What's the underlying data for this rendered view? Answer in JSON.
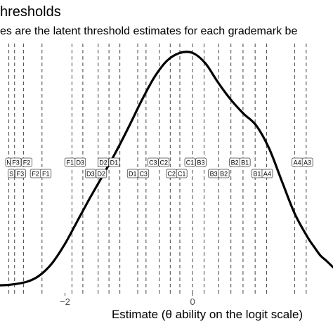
{
  "chart_data": {
    "type": "line",
    "title": "hresholds",
    "subtitle": "es are the latent threshold estimates for each grademark be",
    "xlabel": "Estimate (θ ability on the logit scale)",
    "ylabel": "",
    "xlim": [
      -3.15,
      2.2
    ],
    "ylim": [
      0,
      0.47
    ],
    "x_ticks": [
      -2,
      0
    ],
    "x_tick_labels": [
      "−2",
      "0"
    ],
    "grid": false,
    "density": {
      "x": [
        -3.2,
        -2.9,
        -2.6,
        -2.4,
        -2.2,
        -2.0,
        -1.8,
        -1.6,
        -1.4,
        -1.2,
        -1.0,
        -0.8,
        -0.6,
        -0.4,
        -0.2,
        0.0,
        0.2,
        0.4,
        0.6,
        0.8,
        1.0,
        1.2,
        1.4,
        1.6,
        1.8,
        1.9,
        2.0,
        2.1,
        2.2
      ],
      "y": [
        0.005,
        0.006,
        0.012,
        0.024,
        0.048,
        0.085,
        0.13,
        0.175,
        0.218,
        0.262,
        0.31,
        0.36,
        0.405,
        0.437,
        0.452,
        0.452,
        0.432,
        0.395,
        0.362,
        0.335,
        0.312,
        0.268,
        0.205,
        0.143,
        0.098,
        0.08,
        0.063,
        0.052,
        0.04
      ]
    },
    "thresholds": [
      {
        "x": -2.88,
        "label": "N"
      },
      {
        "x": -2.79,
        "label": "F3"
      },
      {
        "x": -2.65,
        "label": "F2"
      },
      {
        "x": -2.36,
        "label": "F1"
      },
      {
        "x": -1.89,
        "label": "F1"
      },
      {
        "x": -1.72,
        "label": "D3"
      },
      {
        "x": -1.48,
        "label": "D3"
      },
      {
        "x": -1.31,
        "label": "D2"
      },
      {
        "x": -1.14,
        "label": "D1"
      },
      {
        "x": -0.86,
        "label": "D1"
      },
      {
        "x": -0.73,
        "label": "C3"
      },
      {
        "x": -0.52,
        "label": "C3"
      },
      {
        "x": -0.35,
        "label": "C2"
      },
      {
        "x": -0.2,
        "label": "C1"
      },
      {
        "x": 0.0,
        "label": "C1"
      },
      {
        "x": 0.18,
        "label": "B3"
      },
      {
        "x": 0.41,
        "label": "B3"
      },
      {
        "x": 0.6,
        "label": "B2"
      },
      {
        "x": 0.79,
        "label": "B1"
      },
      {
        "x": 0.98,
        "label": "B1"
      },
      {
        "x": 1.16,
        "label": "A4"
      },
      {
        "x": 1.6,
        "label": "A4"
      },
      {
        "x": 1.78,
        "label": "A3"
      }
    ],
    "threshold_labels": [
      {
        "text": "N",
        "x": -2.88,
        "row": 1
      },
      {
        "text": "F3",
        "x": -2.77,
        "row": 1
      },
      {
        "text": "F2",
        "x": -2.6,
        "row": 1
      },
      {
        "text": "F1",
        "x": -1.92,
        "row": 1
      },
      {
        "text": "D3",
        "x": -1.76,
        "row": 1
      },
      {
        "text": "D2",
        "x": -1.4,
        "row": 1
      },
      {
        "text": "D1",
        "x": -1.23,
        "row": 1
      },
      {
        "text": "C3",
        "x": -0.62,
        "row": 1
      },
      {
        "text": "C2",
        "x": -0.45,
        "row": 1
      },
      {
        "text": "C1",
        "x": -0.04,
        "row": 1
      },
      {
        "text": "B3",
        "x": 0.13,
        "row": 1
      },
      {
        "text": "B2",
        "x": 0.66,
        "row": 1
      },
      {
        "text": "B1",
        "x": 0.82,
        "row": 1
      },
      {
        "text": "A4",
        "x": 1.64,
        "row": 1
      },
      {
        "text": "A3",
        "x": 1.8,
        "row": 1
      },
      {
        "text": "S",
        "x": -2.84,
        "row": 2
      },
      {
        "text": "F3",
        "x": -2.7,
        "row": 2
      },
      {
        "text": "F2",
        "x": -2.46,
        "row": 2
      },
      {
        "text": "F1",
        "x": -2.3,
        "row": 2
      },
      {
        "text": "D3",
        "x": -1.6,
        "row": 2
      },
      {
        "text": "D2",
        "x": -1.43,
        "row": 2
      },
      {
        "text": "D1",
        "x": -0.94,
        "row": 2
      },
      {
        "text": "C3",
        "x": -0.77,
        "row": 2
      },
      {
        "text": "C2",
        "x": -0.33,
        "row": 2
      },
      {
        "text": "C1",
        "x": -0.17,
        "row": 2
      },
      {
        "text": "B3",
        "x": 0.33,
        "row": 2
      },
      {
        "text": "B2",
        "x": 0.49,
        "row": 2
      },
      {
        "text": "B1",
        "x": 1.01,
        "row": 2
      },
      {
        "text": "A4",
        "x": 1.17,
        "row": 2
      }
    ]
  },
  "colors": {
    "density": "#000000",
    "threshold_line": "#555555",
    "label_fill": "#ffffff",
    "label_border": "#444444",
    "tick": "#4d4d4d"
  }
}
